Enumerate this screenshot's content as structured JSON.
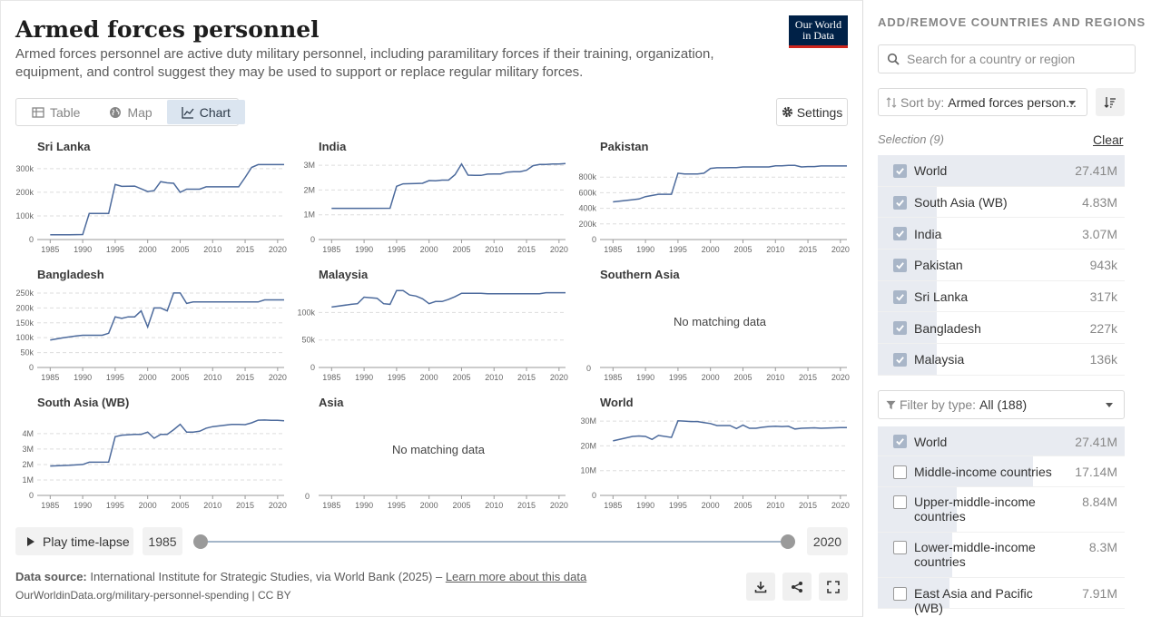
{
  "header": {
    "title": "Armed forces personnel",
    "subtitle": "Armed forces personnel are active duty military personnel, including paramilitary forces if their training, organization, equipment, and control suggest they may be used to support or replace regular military forces.",
    "logo_line1": "Our World",
    "logo_line2": "in Data"
  },
  "tabs": [
    {
      "label": "Table",
      "icon": "table-icon",
      "active": false
    },
    {
      "label": "Map",
      "icon": "globe-icon",
      "active": false
    },
    {
      "label": "Chart",
      "icon": "chart-icon",
      "active": true
    }
  ],
  "settings_label": "Settings",
  "chart_data": [
    {
      "type": "line",
      "title": "Sri Lanka",
      "ylim": [
        0,
        330000
      ],
      "yticks": [
        0,
        100000,
        200000,
        300000
      ],
      "ytick_labels": [
        "0",
        "100k",
        "200k",
        "300k"
      ],
      "x": [
        1985,
        1988,
        1990,
        1991,
        1994,
        1995,
        1996,
        1998,
        2000,
        2001,
        2002,
        2003,
        2004,
        2005,
        2006,
        2007,
        2008,
        2009,
        2010,
        2011,
        2012,
        2013,
        2014,
        2015,
        2016,
        2017,
        2018,
        2019,
        2020,
        2021
      ],
      "values": [
        20000,
        20000,
        21000,
        110000,
        110000,
        233000,
        225000,
        226000,
        203000,
        207000,
        245000,
        240000,
        238000,
        200000,
        213000,
        213000,
        213000,
        223000,
        223000,
        223000,
        223000,
        223000,
        223000,
        263000,
        305000,
        317000,
        317000,
        317000,
        317000,
        317000
      ]
    },
    {
      "type": "line",
      "title": "India",
      "ylim": [
        0,
        3150000
      ],
      "yticks": [
        0,
        1000000,
        2000000,
        3000000
      ],
      "ytick_labels": [
        "0",
        "1M",
        "2M",
        "3M"
      ],
      "x": [
        1985,
        1990,
        1994,
        1995,
        1996,
        1998,
        1999,
        2000,
        2001,
        2002,
        2003,
        2004,
        2005,
        2006,
        2007,
        2008,
        2009,
        2010,
        2011,
        2012,
        2013,
        2014,
        2015,
        2016,
        2017,
        2018,
        2019,
        2020,
        2021
      ],
      "values": [
        1260000,
        1260000,
        1265000,
        2150000,
        2250000,
        2260000,
        2270000,
        2380000,
        2370000,
        2400000,
        2400000,
        2620000,
        3050000,
        2600000,
        2590000,
        2590000,
        2640000,
        2650000,
        2650000,
        2720000,
        2740000,
        2740000,
        2800000,
        2980000,
        3030000,
        3030000,
        3050000,
        3050000,
        3070000
      ]
    },
    {
      "type": "line",
      "title": "Pakistan",
      "ylim": [
        0,
        1000000
      ],
      "yticks": [
        0,
        200000,
        400000,
        600000,
        800000
      ],
      "ytick_labels": [
        "0",
        "200k",
        "400k",
        "600k",
        "800k"
      ],
      "x": [
        1985,
        1988,
        1989,
        1990,
        1992,
        1994,
        1995,
        1996,
        1998,
        1999,
        2000,
        2001,
        2002,
        2003,
        2004,
        2005,
        2006,
        2007,
        2008,
        2009,
        2010,
        2011,
        2012,
        2013,
        2014,
        2015,
        2016,
        2017,
        2018,
        2019,
        2020,
        2021
      ],
      "values": [
        483000,
        510000,
        520000,
        550000,
        580000,
        580000,
        850000,
        840000,
        840000,
        850000,
        912000,
        920000,
        920000,
        921000,
        922000,
        930000,
        930000,
        930000,
        930000,
        930000,
        945000,
        945000,
        950000,
        950000,
        930000,
        935000,
        935000,
        943000,
        943000,
        943000,
        943000,
        943000
      ]
    },
    {
      "type": "line",
      "title": "Bangladesh",
      "ylim": [
        0,
        262000
      ],
      "yticks": [
        0,
        50000,
        100000,
        150000,
        200000,
        250000
      ],
      "ytick_labels": [
        "0",
        "50k",
        "100k",
        "150k",
        "200k",
        "250k"
      ],
      "x": [
        1985,
        1987,
        1989,
        1990,
        1992,
        1993,
        1994,
        1995,
        1996,
        1997,
        1998,
        1999,
        2000,
        2001,
        2002,
        2003,
        2004,
        2005,
        2006,
        2007,
        2008,
        2009,
        2010,
        2011,
        2012,
        2013,
        2014,
        2015,
        2016,
        2017,
        2018,
        2019,
        2020,
        2021
      ],
      "values": [
        92000,
        100000,
        106000,
        108000,
        108000,
        108000,
        115000,
        170000,
        165000,
        170000,
        170000,
        190000,
        136000,
        200000,
        200000,
        190000,
        250000,
        250000,
        215000,
        220000,
        220000,
        220000,
        220000,
        220000,
        220000,
        220000,
        220000,
        220000,
        220000,
        220000,
        227000,
        227000,
        227000,
        227000
      ]
    },
    {
      "type": "line",
      "title": "Malaysia",
      "ylim": [
        0,
        142000
      ],
      "yticks": [
        0,
        50000,
        100000
      ],
      "ytick_labels": [
        "0",
        "50k",
        "100k"
      ],
      "x": [
        1985,
        1988,
        1989,
        1990,
        1992,
        1993,
        1994,
        1995,
        1996,
        1997,
        1998,
        1999,
        2000,
        2001,
        2002,
        2003,
        2004,
        2005,
        2006,
        2007,
        2008,
        2009,
        2010,
        2011,
        2012,
        2013,
        2014,
        2015,
        2016,
        2017,
        2018,
        2019,
        2020,
        2021
      ],
      "values": [
        110000,
        115000,
        116000,
        128000,
        126000,
        116000,
        115000,
        140000,
        140000,
        132000,
        130000,
        125000,
        116000,
        120000,
        120000,
        124000,
        129000,
        135000,
        135000,
        135000,
        135000,
        134000,
        134000,
        134000,
        134000,
        134000,
        134000,
        134000,
        134000,
        134000,
        136000,
        136000,
        136000,
        136000
      ]
    },
    {
      "type": "line",
      "title": "Southern Asia",
      "no_data": true
    },
    {
      "type": "line",
      "title": "South Asia (WB)",
      "ylim": [
        0,
        5050000
      ],
      "yticks": [
        0,
        1000000,
        2000000,
        3000000,
        4000000
      ],
      "ytick_labels": [
        "0",
        "1M",
        "2M",
        "3M",
        "4M"
      ],
      "x": [
        1985,
        1988,
        1990,
        1991,
        1994,
        1995,
        1996,
        1998,
        1999,
        2000,
        2001,
        2002,
        2003,
        2004,
        2005,
        2006,
        2007,
        2008,
        2009,
        2010,
        2011,
        2012,
        2013,
        2014,
        2015,
        2016,
        2017,
        2018,
        2019,
        2020,
        2021
      ],
      "values": [
        1900000,
        1950000,
        2000000,
        2150000,
        2160000,
        3800000,
        3900000,
        3950000,
        3950000,
        4100000,
        3700000,
        3950000,
        3950000,
        4250000,
        4600000,
        4100000,
        4100000,
        4150000,
        4350000,
        4450000,
        4500000,
        4550000,
        4600000,
        4600000,
        4580000,
        4700000,
        4870000,
        4880000,
        4860000,
        4860000,
        4830000
      ]
    },
    {
      "type": "line",
      "title": "Asia",
      "no_data": true
    },
    {
      "type": "line",
      "title": "World",
      "ylim": [
        0,
        31500000
      ],
      "yticks": [
        0,
        10000000,
        20000000,
        30000000
      ],
      "ytick_labels": [
        "0",
        "10M",
        "20M",
        "30M"
      ],
      "x": [
        1985,
        1988,
        1989,
        1990,
        1991,
        1992,
        1994,
        1995,
        1996,
        1997,
        1998,
        1999,
        2000,
        2001,
        2002,
        2003,
        2004,
        2005,
        2006,
        2007,
        2008,
        2009,
        2010,
        2011,
        2012,
        2013,
        2014,
        2015,
        2016,
        2017,
        2018,
        2019,
        2020,
        2021
      ],
      "values": [
        22000000,
        23800000,
        24000000,
        23800000,
        22600000,
        24200000,
        23400000,
        30100000,
        30000000,
        29800000,
        29800000,
        29400000,
        29000000,
        28200000,
        28200000,
        28200000,
        27000000,
        28400000,
        27100000,
        27100000,
        27500000,
        27800000,
        27900000,
        27800000,
        27900000,
        26800000,
        27100000,
        27200000,
        27300000,
        27100000,
        27200000,
        27300000,
        27410000,
        27410000
      ]
    }
  ],
  "x_tick_labels": [
    "1985",
    "1990",
    "1995",
    "2000",
    "2005",
    "2010",
    "2015",
    "2020"
  ],
  "no_data_text": "No matching data",
  "timeline": {
    "play_label": "Play time-lapse",
    "start_year": "1985",
    "end_year": "2020"
  },
  "footer": {
    "source_label": "Data source:",
    "source_text": "International Institute for Strategic Studies, via World Bank (2025) –",
    "learn_more": "Learn more about this data",
    "url": "OurWorldinData.org/military-personnel-spending | CC BY"
  },
  "colors": {
    "line": "#4c6a9c",
    "grid": "#dddddd"
  },
  "sidebar": {
    "title": "ADD/REMOVE COUNTRIES AND REGIONS",
    "search_placeholder": "Search for a country or region",
    "sort_prefix": "Sort by:",
    "sort_value": "Armed forces person...",
    "selection_label": "Selection (9)",
    "clear_label": "Clear",
    "selected": [
      {
        "name": "World",
        "value": "27.41M",
        "share": 1.0
      },
      {
        "name": "South Asia (WB)",
        "value": "4.83M",
        "share": 0.14
      },
      {
        "name": "India",
        "value": "3.07M",
        "share": 0.11
      },
      {
        "name": "Pakistan",
        "value": "943k",
        "share": 0.04
      },
      {
        "name": "Sri Lanka",
        "value": "317k",
        "share": 0.02
      },
      {
        "name": "Bangladesh",
        "value": "227k",
        "share": 0.01
      },
      {
        "name": "Malaysia",
        "value": "136k",
        "share": 0.005
      }
    ],
    "filter_prefix": "Filter by type:",
    "filter_value": "All (188)",
    "all_items": [
      {
        "name": "World",
        "value": "27.41M",
        "checked": true,
        "share": 1.0
      },
      {
        "name": "Middle-income countries",
        "value": "17.14M",
        "checked": false,
        "share": 0.63
      },
      {
        "name": "Upper-middle-income countries",
        "value": "8.84M",
        "checked": false,
        "share": 0.32
      },
      {
        "name": "Lower-middle-income countries",
        "value": "8.3M",
        "checked": false,
        "share": 0.3
      },
      {
        "name": "East Asia and Pacific (WB)",
        "value": "7.91M",
        "checked": false,
        "share": 0.29
      }
    ]
  }
}
